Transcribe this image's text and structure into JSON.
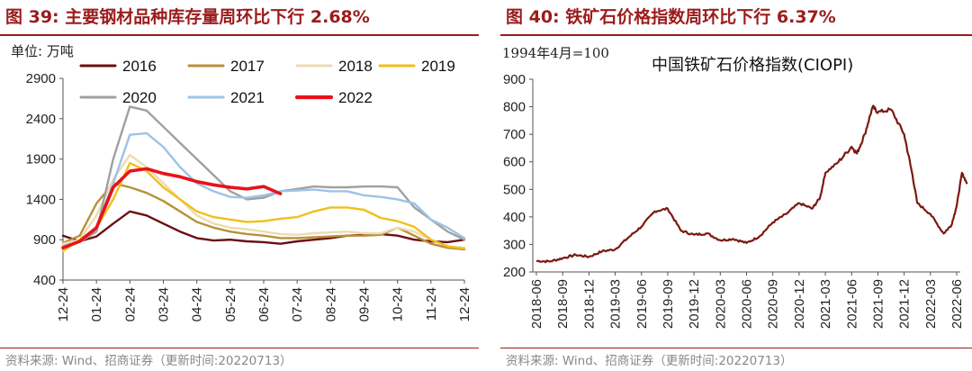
{
  "left": {
    "title": "图 39:  主要钢材品种库存量周环比下行 2.68%",
    "unit": "单位:  万吨",
    "source": "资料来源:  Wind、招商证券（更新时间:20220713）",
    "chart_data": {
      "type": "line",
      "title": "主要钢材品种库存量周环比下行 2.68%",
      "ylabel": "万吨",
      "ylim": [
        400,
        2900
      ],
      "yticks": [
        400,
        900,
        1400,
        1900,
        2400,
        2900
      ],
      "x_month_labels": [
        "12-24",
        "01-24",
        "02-24",
        "03-24",
        "04-24",
        "05-24",
        "06-24",
        "07-24",
        "08-24",
        "09-24",
        "10-24",
        "11-24",
        "12-24"
      ],
      "x_points": [
        "12-24",
        "01-08",
        "01-24",
        "02-08",
        "02-24",
        "03-08",
        "03-24",
        "04-08",
        "04-24",
        "05-08",
        "05-24",
        "06-08",
        "06-24",
        "07-08",
        "07-24",
        "08-08",
        "08-24",
        "09-08",
        "09-24",
        "10-08",
        "10-24",
        "11-08",
        "11-24",
        "12-08",
        "12-24"
      ],
      "series": [
        {
          "name": "2016",
          "color": "#6b0f12",
          "width": 2.4,
          "values": [
            950,
            880,
            940,
            1100,
            1250,
            1200,
            1100,
            1000,
            920,
            890,
            900,
            880,
            870,
            850,
            880,
            900,
            920,
            950,
            960,
            970,
            950,
            900,
            880,
            870,
            900
          ]
        },
        {
          "name": "2017",
          "color": "#b8913a",
          "width": 2.4,
          "values": [
            860,
            950,
            1350,
            1600,
            1550,
            1480,
            1380,
            1250,
            1120,
            1050,
            1000,
            970,
            950,
            920,
            920,
            930,
            940,
            950,
            950,
            960,
            1050,
            950,
            850,
            800,
            780
          ]
        },
        {
          "name": "2018",
          "color": "#eedbb2",
          "width": 2.4,
          "values": [
            850,
            900,
            1200,
            1650,
            1950,
            1800,
            1600,
            1400,
            1200,
            1100,
            1050,
            1030,
            1000,
            970,
            960,
            980,
            990,
            1000,
            980,
            980,
            1050,
            1000,
            900,
            820,
            800
          ]
        },
        {
          "name": "2019",
          "color": "#f2bf1c",
          "width": 2.4,
          "values": [
            760,
            900,
            1050,
            1400,
            1850,
            1750,
            1550,
            1400,
            1250,
            1180,
            1150,
            1120,
            1130,
            1160,
            1180,
            1250,
            1300,
            1300,
            1270,
            1170,
            1130,
            1060,
            900,
            820,
            790
          ]
        },
        {
          "name": "2020",
          "color": "#a0a0a0",
          "width": 2.4,
          "values": [
            820,
            870,
            1000,
            1900,
            2550,
            2500,
            2300,
            2100,
            1900,
            1700,
            1500,
            1400,
            1420,
            1500,
            1530,
            1560,
            1550,
            1550,
            1560,
            1560,
            1550,
            1300,
            1150,
            1000,
            900
          ]
        },
        {
          "name": "2021",
          "color": "#9dc3e6",
          "width": 2.4,
          "values": [
            820,
            880,
            1050,
            1600,
            2200,
            2220,
            2050,
            1800,
            1600,
            1500,
            1430,
            1420,
            1450,
            1500,
            1510,
            1520,
            1500,
            1500,
            1450,
            1430,
            1400,
            1350,
            1150,
            1050,
            920
          ]
        },
        {
          "name": "2022",
          "color": "#e8121a",
          "width": 3.6,
          "values": [
            800,
            880,
            1050,
            1550,
            1750,
            1780,
            1720,
            1680,
            1620,
            1580,
            1550,
            1530,
            1560,
            1470,
            null,
            null,
            null,
            null,
            null,
            null,
            null,
            null,
            null,
            null,
            null
          ]
        }
      ]
    }
  },
  "right": {
    "title": "图 40:  铁矿石价格指数周环比下行 6.37%",
    "base_note": "1994年4月=100",
    "source": "资料来源:  Wind、招商证券（更新时间:20220713）",
    "chart_data": {
      "type": "line",
      "title": "中国铁矿石价格指数(CIOPI)",
      "ylim": [
        200,
        900
      ],
      "yticks": [
        200,
        300,
        400,
        500,
        600,
        700,
        800,
        900
      ],
      "x_labels": [
        "2018-06",
        "2018-09",
        "2018-12",
        "2019-03",
        "2019-06",
        "2019-09",
        "2019-12",
        "2020-03",
        "2020-06",
        "2020-09",
        "2020-12",
        "2021-03",
        "2021-06",
        "2021-09",
        "2021-12",
        "2022-03",
        "2022-06"
      ],
      "series": [
        {
          "name": "中国铁矿石价格指数(CIOPI)",
          "color": "#7a1a12",
          "width": 2.2,
          "x": [
            0,
            0.5,
            1,
            1.5,
            2,
            2.5,
            3,
            3.5,
            4,
            4.5,
            5,
            5.5,
            6,
            6.5,
            7,
            7.5,
            8,
            8.5,
            9,
            9.5,
            10,
            10.5,
            10.8,
            11,
            11.5,
            12,
            12.2,
            12.5,
            12.8,
            13,
            13.5,
            14,
            14.3,
            14.5,
            15,
            15.5,
            15.8,
            16,
            16.2,
            16.4
          ],
          "y": [
            240,
            238,
            250,
            262,
            255,
            275,
            282,
            325,
            365,
            420,
            430,
            350,
            335,
            340,
            315,
            320,
            305,
            330,
            380,
            410,
            450,
            430,
            470,
            560,
            600,
            655,
            630,
            700,
            800,
            780,
            790,
            700,
            560,
            450,
            410,
            340,
            370,
            440,
            560,
            520
          ]
        }
      ]
    }
  }
}
